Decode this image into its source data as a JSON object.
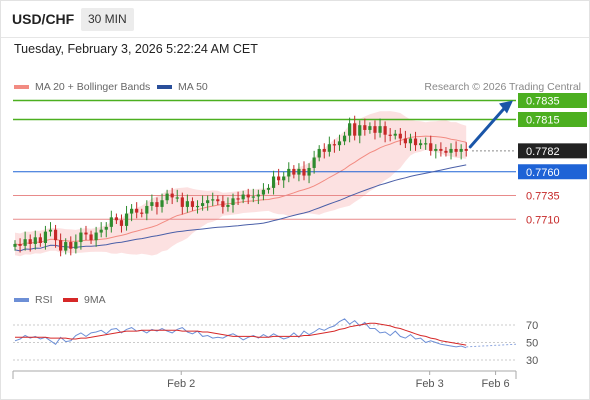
{
  "header": {
    "symbol": "USD/CHF",
    "timeframe": "30 MIN"
  },
  "datetime": "Tuesday, February 3, 2026 5:22:24 AM CET",
  "legend": {
    "bb_label": "MA 20 + Bollinger Bands",
    "ma50_label": "MA 50",
    "copyright": "Research © 2026 Trading Central"
  },
  "rsi_legend": {
    "rsi_label": "RSI",
    "ma_label": "9MA"
  },
  "colors": {
    "up": "#2e8b2e",
    "down": "#c62828",
    "bb_fill": "#fbd7d7",
    "bb_line": "#f28b82",
    "ma50": "#4a5fa8",
    "resistance": "#4caf20",
    "pivot": "#1e63d6",
    "support": "#e88a8a",
    "current": "#222222",
    "arrow": "#1a55a8",
    "rsi": "#6d8fd6",
    "rsi_ma": "#d62828"
  },
  "chart_data": {
    "type": "candlestick",
    "instrument": "USD/CHF",
    "interval": "30 MIN",
    "y_range": [
      0.7645,
      0.7845
    ],
    "levels": [
      {
        "role": "resistance",
        "value": 0.7835,
        "label": "0.7835"
      },
      {
        "role": "resistance",
        "value": 0.7815,
        "label": "0.7815"
      },
      {
        "role": "current",
        "value": 0.7782,
        "label": "0.7782"
      },
      {
        "role": "pivot",
        "value": 0.776,
        "label": "0.7760"
      },
      {
        "role": "support",
        "value": 0.7735,
        "label": "0.7735"
      },
      {
        "role": "support",
        "value": 0.771,
        "label": "0.7710"
      }
    ],
    "x_labels": [
      {
        "index": 32,
        "label": "Feb 2"
      },
      {
        "index": 81,
        "label": "Feb 3"
      },
      {
        "index": 94,
        "label": "Feb 6"
      }
    ],
    "close": [
      0.7684,
      0.7682,
      0.7689,
      0.7684,
      0.7691,
      0.7685,
      0.7697,
      0.7699,
      0.7688,
      0.7677,
      0.7686,
      0.7679,
      0.7686,
      0.7696,
      0.7694,
      0.7688,
      0.7696,
      0.7699,
      0.7702,
      0.7712,
      0.7709,
      0.7703,
      0.7716,
      0.7721,
      0.7717,
      0.7716,
      0.7724,
      0.7728,
      0.7723,
      0.773,
      0.7737,
      0.7733,
      0.7733,
      0.7723,
      0.7729,
      0.7723,
      0.7724,
      0.7727,
      0.773,
      0.7731,
      0.7729,
      0.7723,
      0.7725,
      0.7732,
      0.7731,
      0.7736,
      0.7733,
      0.7734,
      0.7736,
      0.7741,
      0.7743,
      0.7755,
      0.7751,
      0.7755,
      0.7763,
      0.7757,
      0.7763,
      0.7756,
      0.7764,
      0.7775,
      0.7784,
      0.7781,
      0.7789,
      0.7788,
      0.7792,
      0.7798,
      0.7811,
      0.7798,
      0.7809,
      0.7804,
      0.7808,
      0.7801,
      0.7808,
      0.7799,
      0.7798,
      0.78,
      0.7795,
      0.779,
      0.7795,
      0.7788,
      0.779,
      0.779,
      0.7782,
      0.7784,
      0.7782,
      0.778,
      0.7784,
      0.7781,
      0.7784,
      0.7782
    ],
    "overlays": [
      "MA 20 + Bollinger Bands",
      "MA 50"
    ],
    "rsi": {
      "y_ticks": [
        70,
        50,
        30
      ],
      "rsi_values": [
        52,
        54,
        58,
        55,
        57,
        54,
        56,
        52,
        48,
        56,
        51,
        52,
        58,
        61,
        57,
        61,
        62,
        64,
        60,
        65,
        66,
        61,
        65,
        67,
        63,
        64,
        61,
        65,
        63,
        66,
        63,
        61,
        65,
        67,
        62,
        60,
        63,
        57,
        58,
        55,
        56,
        55,
        58,
        60,
        57,
        53,
        56,
        58,
        55,
        59,
        56,
        60,
        57,
        54,
        56,
        61,
        56,
        63,
        59,
        62,
        66,
        64,
        67,
        69,
        74,
        77,
        71,
        75,
        69,
        73,
        66,
        66,
        61,
        62,
        58,
        63,
        57,
        55,
        59,
        54,
        55,
        50,
        52,
        50,
        48,
        47,
        46,
        45,
        46,
        44
      ],
      "ma_values": [
        56,
        56,
        56,
        56,
        56,
        56,
        56,
        55,
        55,
        55,
        55,
        54,
        54,
        55,
        55,
        56,
        57,
        58,
        59,
        60,
        61,
        62,
        63,
        63,
        63,
        64,
        64,
        64,
        64,
        64,
        64,
        64,
        64,
        63,
        63,
        63,
        63,
        62,
        62,
        61,
        60,
        59,
        58,
        57,
        57,
        57,
        57,
        57,
        56,
        56,
        56,
        57,
        57,
        57,
        57,
        57,
        57,
        58,
        58,
        59,
        60,
        61,
        62,
        63,
        65,
        66,
        68,
        69,
        70,
        71,
        72,
        72,
        71,
        70,
        69,
        67,
        66,
        64,
        62,
        60,
        58,
        57,
        55,
        54,
        52,
        51,
        50,
        49,
        48,
        47
      ]
    }
  }
}
